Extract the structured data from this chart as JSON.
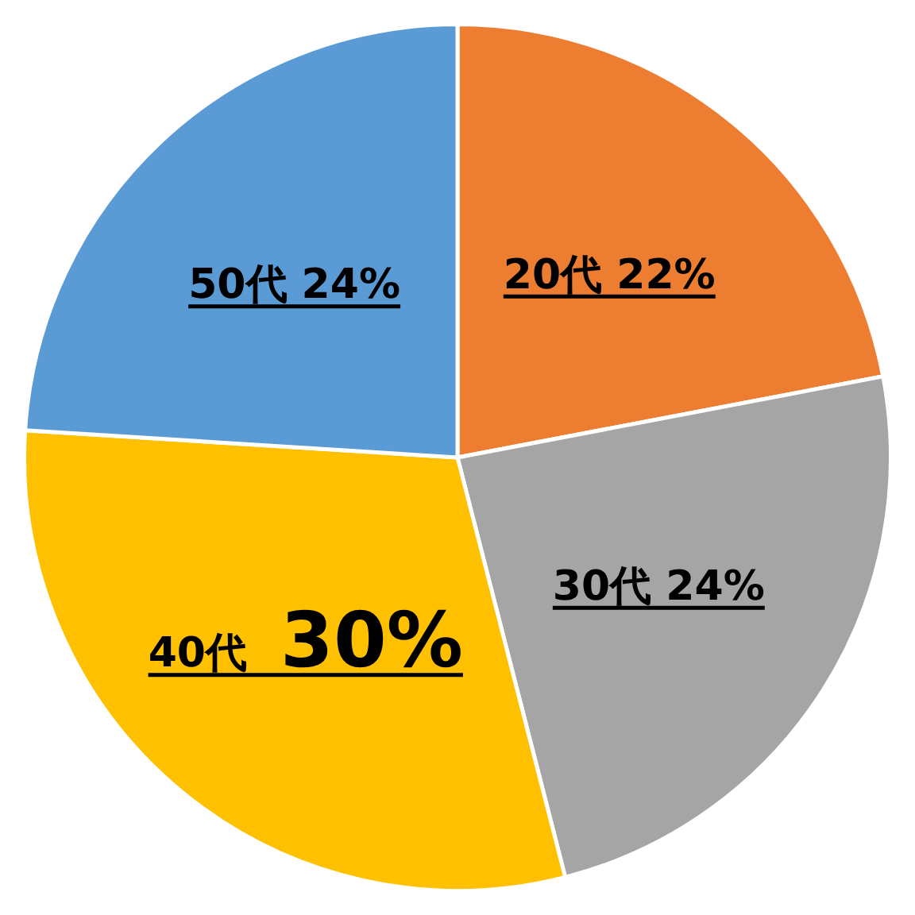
{
  "chart_data": {
    "type": "pie",
    "categories": [
      "20代",
      "30代",
      "40代",
      "50代"
    ],
    "values": [
      22,
      24,
      30,
      24
    ],
    "value_labels": [
      "22%",
      "24%",
      "30%",
      "24%"
    ],
    "colors": [
      "#ed7d31",
      "#a5a5a5",
      "#ffc000",
      "#5b9bd5"
    ],
    "legend": false
  }
}
